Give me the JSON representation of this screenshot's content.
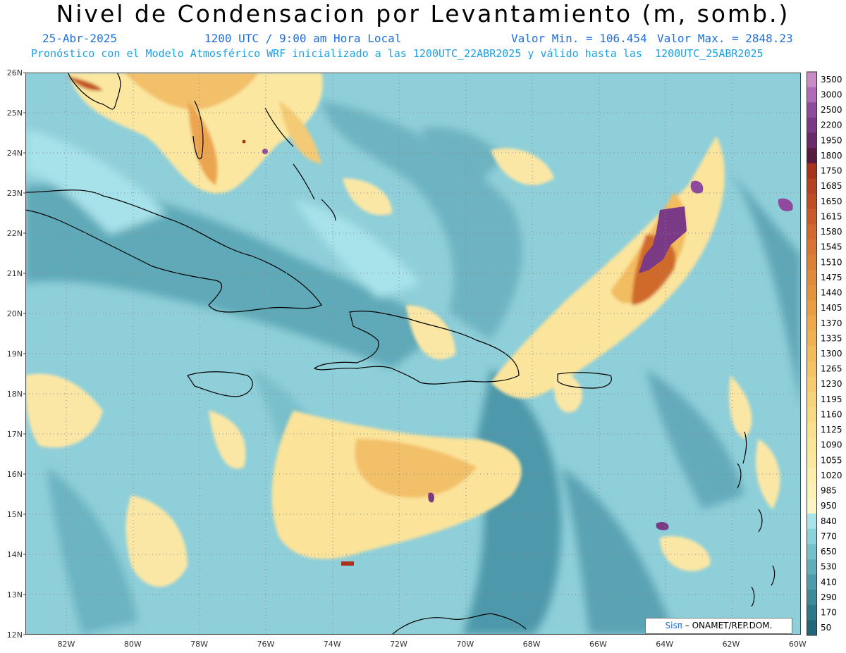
{
  "header": {
    "title": "Nivel de Condensacion por Levantamiento (m, somb.)",
    "date": "25-Abr-2025",
    "time": "1200 UTC / 9:00 am Hora Local",
    "min_label": "Valor Min. = 106.454",
    "max_label": "Valor Max. = 2848.23",
    "model_line": "Pronóstico con el Modelo Atmosférico WRF inicializado a las 1200UTC_22ABR2025 y válido hasta las  1200UTC_25ABR2025"
  },
  "map": {
    "lon_range": [
      -83.2,
      -60
    ],
    "lat_range": [
      12,
      26
    ]
  },
  "axes": {
    "lat_labels": [
      "12N",
      "13N",
      "14N",
      "15N",
      "16N",
      "17N",
      "18N",
      "19N",
      "20N",
      "21N",
      "22N",
      "23N",
      "24N",
      "25N",
      "26N"
    ],
    "lon_labels": [
      "82W",
      "80W",
      "78W",
      "76W",
      "74W",
      "72W",
      "70W",
      "68W",
      "66W",
      "64W",
      "62W",
      "60W"
    ]
  },
  "colorbar": {
    "labels": [
      "3500",
      "3000",
      "2500",
      "2200",
      "1950",
      "1800",
      "1750",
      "1685",
      "1650",
      "1615",
      "1580",
      "1545",
      "1510",
      "1475",
      "1440",
      "1405",
      "1370",
      "1335",
      "1300",
      "1265",
      "1230",
      "1195",
      "1160",
      "1125",
      "1090",
      "1055",
      "1020",
      "985",
      "950",
      "840",
      "770",
      "650",
      "530",
      "410",
      "290",
      "170",
      "50"
    ],
    "colors": [
      "#c98cc8",
      "#b06bb8",
      "#8e4b9e",
      "#7a3a86",
      "#6a2a6a",
      "#5a1a40",
      "#a8321c",
      "#b84020",
      "#c44c24",
      "#cc5a28",
      "#d4682c",
      "#da7430",
      "#de8034",
      "#e28a38",
      "#e6943c",
      "#ea9e42",
      "#eea848",
      "#f0b250",
      "#f2bc58",
      "#f4c462",
      "#f6cc6c",
      "#f7d476",
      "#f8da80",
      "#f9e08a",
      "#fae694",
      "#fbea9e",
      "#fcefaa",
      "#fcf2b6",
      "#fdf5c2",
      "#a8e4ea",
      "#8cd2dc",
      "#74c0cc",
      "#5eaebc",
      "#4c9cac",
      "#3c8a9c",
      "#2e788c",
      "#22667c"
    ]
  },
  "credit": {
    "brand": "Sisπ",
    "text": "– ONAMET/REP.DOM."
  }
}
